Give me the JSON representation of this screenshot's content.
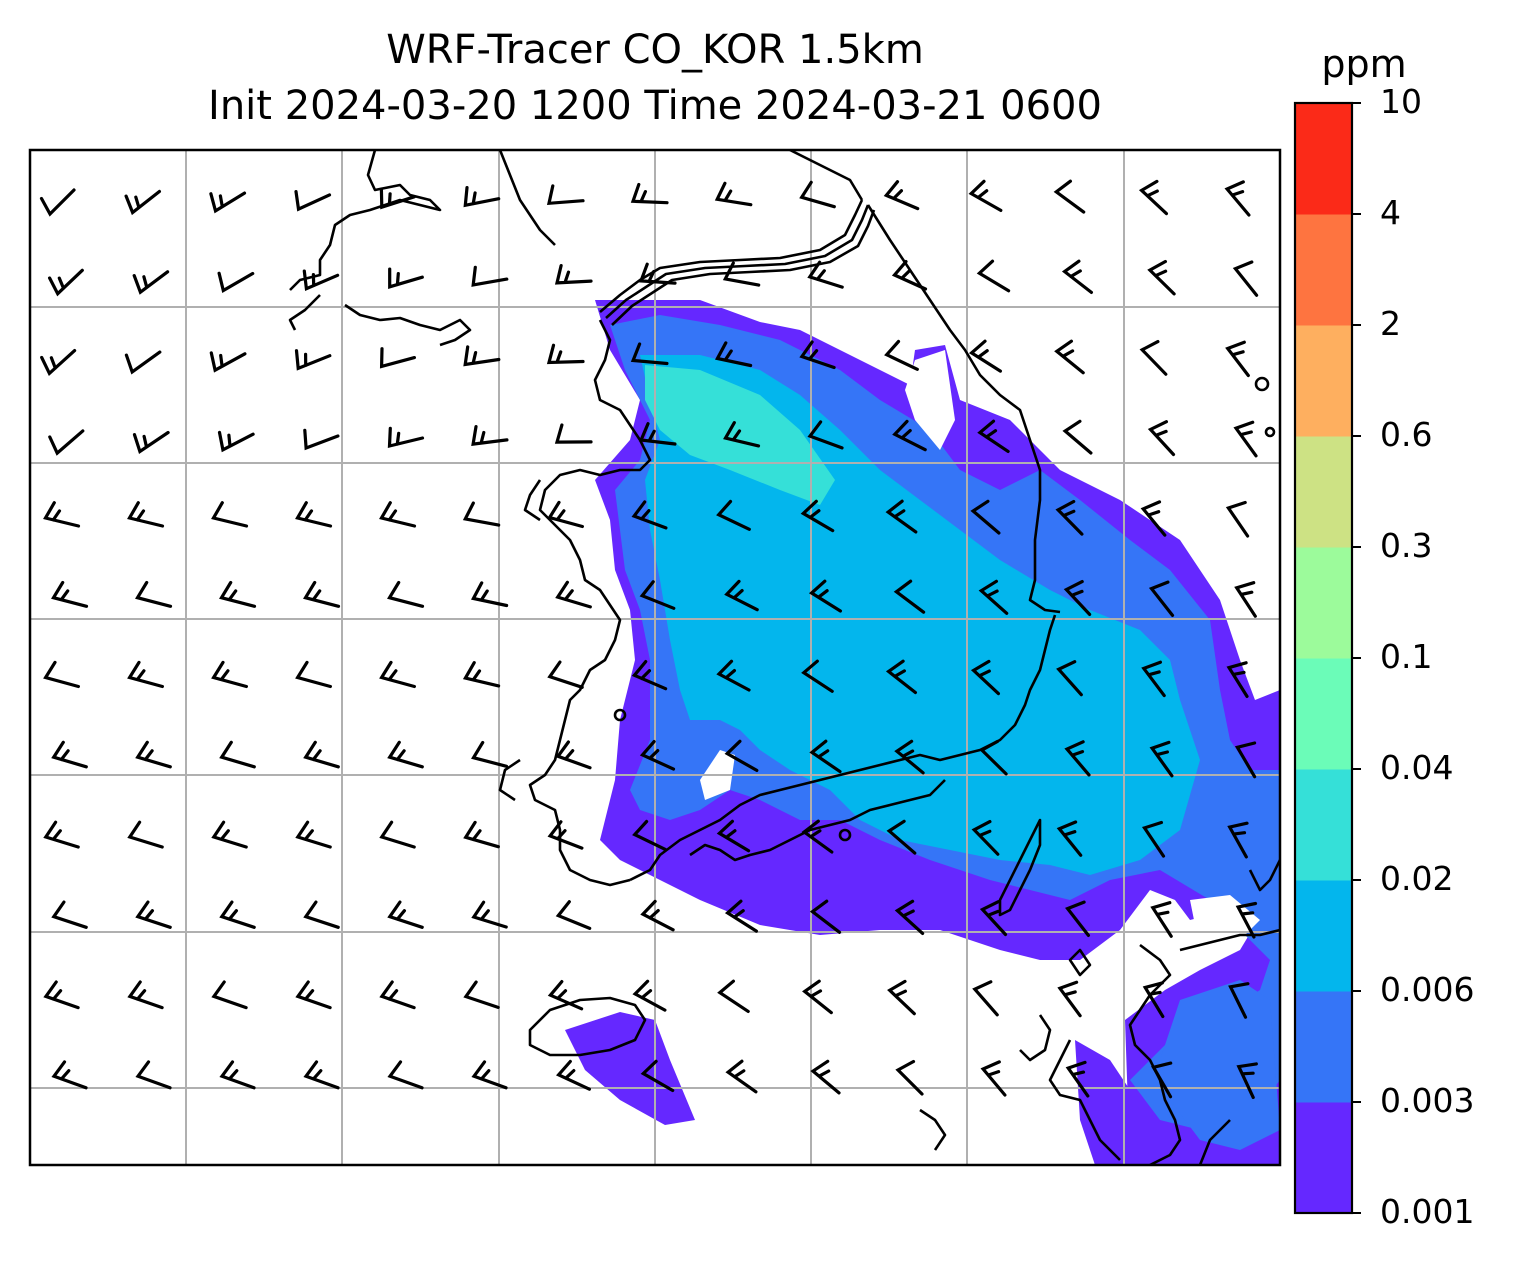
{
  "title": {
    "line1": "WRF-Tracer CO_KOR 1.5km",
    "line2": "Init 2024-03-20 1200 Time 2024-03-21 0600"
  },
  "colorbar": {
    "unit": "ppm",
    "levels": [
      "0.001",
      "0.003",
      "0.006",
      "0.02",
      "0.04",
      "0.1",
      "0.3",
      "0.6",
      "2",
      "4",
      "10"
    ],
    "colors": [
      "#6528ff",
      "#3575f7",
      "#03b6ed",
      "#35e0d8",
      "#6bfcb8",
      "#9cfb9b",
      "#cde284",
      "#feaf5f",
      "#fe7440",
      "#fb2a18"
    ]
  },
  "map": {
    "gridlines": "on",
    "barb_color": "#000000",
    "coast_color": "#000000",
    "grid_color": "#b0b0b0"
  }
}
